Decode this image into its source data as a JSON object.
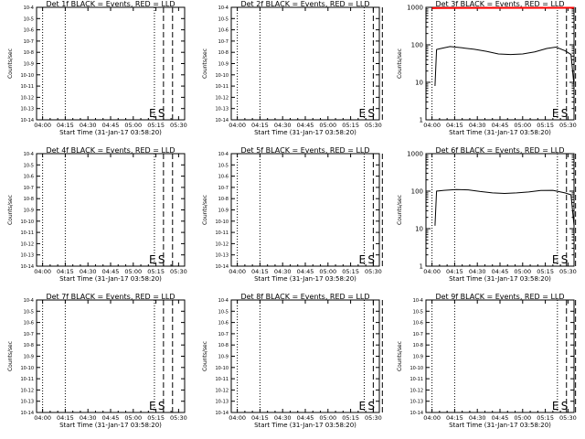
{
  "figure": {
    "xlabel": "Start Time (31-Jan-17 03:58:20)",
    "ylabel": "Counts/sec",
    "x_tick_labels": [
      "04:00",
      "04:15",
      "04:30",
      "04:45",
      "05:00",
      "05:15",
      "05:30"
    ]
  },
  "chart_data": [
    {
      "type": "line",
      "title": "Det 1f BLACK = Events, RED = LLD",
      "scale": "log",
      "style": "tiny",
      "ylim": [
        0.0,
        0.0001
      ],
      "y_tick_labels": [
        "10-14",
        "10-13",
        "10-12",
        "10-11",
        "10-10",
        "10-9",
        "10-8",
        "10-7",
        "10-6",
        "10-5",
        "10-4"
      ],
      "markers": [
        {
          "label": "E",
          "time": "05:14"
        },
        {
          "label": "S",
          "time": "05:20"
        }
      ],
      "series": []
    },
    {
      "type": "line",
      "title": "Det 2f BLACK = Events, RED = LLD",
      "scale": "log",
      "style": "tiny",
      "ylim": [
        0.0,
        0.0001
      ],
      "y_tick_labels": [
        "10-14",
        "10-13",
        "10-12",
        "10-11",
        "10-10",
        "10-9",
        "10-8",
        "10-7",
        "10-6",
        "10-5",
        "10-4"
      ],
      "markers": [
        {
          "label": "E",
          "time": "05:24"
        },
        {
          "label": "S",
          "time": "05:30"
        }
      ],
      "series": []
    },
    {
      "type": "line",
      "title": "Det 3f BLACK = Events, RED = LLD",
      "scale": "log",
      "style": "decade",
      "ylim": [
        1,
        1000
      ],
      "y_tick_labels": [
        "1",
        "10",
        "100",
        "1000"
      ],
      "markers": [
        {
          "label": "E",
          "time": "05:23"
        },
        {
          "label": "S",
          "time": "05:29"
        }
      ],
      "series": [
        {
          "color": "#000000",
          "values": [
            [
              1,
              8
            ],
            [
              1.5,
              75
            ],
            [
              3,
              80
            ],
            [
              6,
              90
            ],
            [
              10,
              83
            ],
            [
              14,
              76
            ],
            [
              18,
              67
            ],
            [
              22,
              57
            ],
            [
              26,
              55
            ],
            [
              30,
              57
            ],
            [
              34,
              65
            ],
            [
              38,
              80
            ],
            [
              41,
              87
            ],
            [
              44,
              70
            ],
            [
              46,
              55
            ],
            [
              47,
              8
            ]
          ]
        },
        {
          "color": "#ff0000",
          "values": [
            [
              0,
              950
            ],
            [
              2,
              960
            ],
            [
              47,
              970
            ]
          ]
        }
      ]
    },
    {
      "type": "line",
      "title": "Det 4f BLACK = Events, RED = LLD",
      "scale": "log",
      "style": "tiny",
      "ylim": [
        0.0,
        0.0001
      ],
      "y_tick_labels": [
        "10-14",
        "10-13",
        "10-12",
        "10-11",
        "10-10",
        "10-9",
        "10-8",
        "10-7",
        "10-6",
        "10-5",
        "10-4"
      ],
      "markers": [
        {
          "label": "E",
          "time": "05:14"
        },
        {
          "label": "S",
          "time": "05:20"
        }
      ],
      "series": []
    },
    {
      "type": "line",
      "title": "Det 5f BLACK = Events, RED = LLD",
      "scale": "log",
      "style": "tiny",
      "ylim": [
        0.0,
        0.0001
      ],
      "y_tick_labels": [
        "10-14",
        "10-13",
        "10-12",
        "10-11",
        "10-10",
        "10-9",
        "10-8",
        "10-7",
        "10-6",
        "10-5",
        "10-4"
      ],
      "markers": [
        {
          "label": "E",
          "time": "05:24"
        },
        {
          "label": "S",
          "time": "05:30"
        }
      ],
      "series": []
    },
    {
      "type": "line",
      "title": "Det 6f BLACK = Events, RED = LLD",
      "scale": "log",
      "style": "decade",
      "ylim": [
        1,
        1000
      ],
      "y_tick_labels": [
        "1",
        "10",
        "100",
        "1000"
      ],
      "markers": [
        {
          "label": "E",
          "time": "05:23"
        },
        {
          "label": "S",
          "time": "05:29"
        }
      ],
      "series": [
        {
          "color": "#000000",
          "values": [
            [
              1,
              12
            ],
            [
              1.5,
              100
            ],
            [
              4,
              105
            ],
            [
              8,
              110
            ],
            [
              12,
              108
            ],
            [
              16,
              98
            ],
            [
              20,
              90
            ],
            [
              24,
              87
            ],
            [
              28,
              90
            ],
            [
              32,
              95
            ],
            [
              36,
              104
            ],
            [
              40,
              105
            ],
            [
              44,
              90
            ],
            [
              46,
              80
            ],
            [
              47,
              12
            ]
          ]
        }
      ]
    },
    {
      "type": "line",
      "title": "Det 7f BLACK = Events, RED = LLD",
      "scale": "log",
      "style": "tiny",
      "ylim": [
        0.0,
        0.0001
      ],
      "y_tick_labels": [
        "10-14",
        "10-13",
        "10-12",
        "10-11",
        "10-10",
        "10-9",
        "10-8",
        "10-7",
        "10-6",
        "10-5",
        "10-4"
      ],
      "markers": [
        {
          "label": "E",
          "time": "05:14"
        },
        {
          "label": "S",
          "time": "05:20"
        }
      ],
      "series": []
    },
    {
      "type": "line",
      "title": "Det 8f BLACK = Events, RED = LLD",
      "scale": "log",
      "style": "tiny",
      "ylim": [
        0.0,
        0.0001
      ],
      "y_tick_labels": [
        "10-14",
        "10-13",
        "10-12",
        "10-11",
        "10-10",
        "10-9",
        "10-8",
        "10-7",
        "10-6",
        "10-5",
        "10-4"
      ],
      "markers": [
        {
          "label": "E",
          "time": "05:24"
        },
        {
          "label": "S",
          "time": "05:30"
        }
      ],
      "series": []
    },
    {
      "type": "line",
      "title": "Det 9f BLACK = Events, RED = LLD",
      "scale": "log",
      "style": "tiny",
      "ylim": [
        0.0,
        0.0001
      ],
      "y_tick_labels": [
        "10-14",
        "10-13",
        "10-12",
        "10-11",
        "10-10",
        "10-9",
        "10-8",
        "10-7",
        "10-6",
        "10-5",
        "10-4"
      ],
      "markers": [
        {
          "label": "E",
          "time": "05:23"
        },
        {
          "label": "S",
          "time": "05:29"
        }
      ],
      "series": []
    }
  ]
}
